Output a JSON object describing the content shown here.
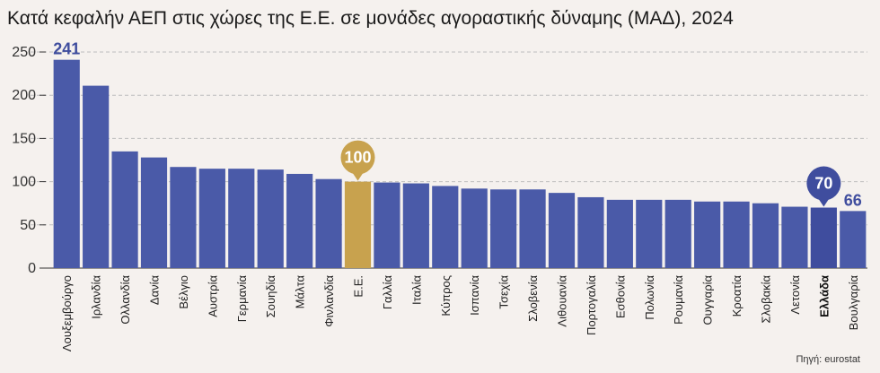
{
  "chart_data": {
    "type": "bar",
    "title": "Κατά κεφαλήν ΑΕΠ στις χώρες της Ε.Ε. σε μονάδες αγοραστικής δύναμης (ΜΑΔ), 2024",
    "source": "Πηγή: eurostat",
    "categories": [
      "Λουξεμβούργο",
      "Ιρλανδία",
      "Ολλανδία",
      "Δανία",
      "Βέλγιο",
      "Αυστρία",
      "Γερμανία",
      "Σουηδία",
      "Μάλτα",
      "Φινλανδία",
      "Ε.Ε.",
      "Γαλλία",
      "Ιταλία",
      "Κύπρος",
      "Ισπανία",
      "Τσεχία",
      "Σλοβενία",
      "Λιθουανία",
      "Πορτογαλία",
      "Εσθονία",
      "Πολωνία",
      "Ρουμανία",
      "Ουγγαρία",
      "Κροατία",
      "Σλοβακία",
      "Λετονία",
      "Ελλάδα",
      "Βουλγαρία"
    ],
    "values": [
      241,
      211,
      135,
      128,
      117,
      115,
      115,
      114,
      109,
      103,
      100,
      99,
      98,
      95,
      92,
      91,
      91,
      87,
      82,
      79,
      79,
      79,
      77,
      77,
      75,
      71,
      70,
      66
    ],
    "ylim": [
      0,
      250
    ],
    "yticks": [
      0,
      50,
      100,
      150,
      200,
      250
    ],
    "grid": true,
    "colors": {
      "default": "#4a5aa8",
      "eu": "#c8a24e",
      "greece": "#3f4d9e"
    },
    "highlights": {
      "Λουξεμβούργο": {
        "label": "241",
        "style": "text"
      },
      "Ε.Ε.": {
        "label": "100",
        "style": "pin",
        "color": "eu"
      },
      "Ελλάδα": {
        "label": "70",
        "style": "pin",
        "color": "greece"
      },
      "Βουλγαρία": {
        "label": "66",
        "style": "text"
      }
    },
    "bold_categories": [
      "Ελλάδα"
    ]
  }
}
